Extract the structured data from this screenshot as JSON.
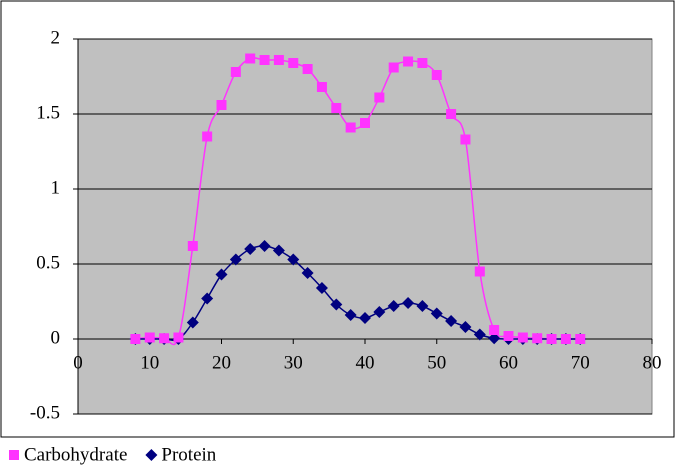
{
  "chart_data": {
    "type": "line",
    "x": [
      8,
      10,
      12,
      14,
      16,
      18,
      20,
      22,
      24,
      26,
      28,
      30,
      32,
      34,
      36,
      38,
      40,
      42,
      44,
      46,
      48,
      50,
      52,
      54,
      56,
      58,
      60,
      62,
      64,
      66,
      68,
      70
    ],
    "series": [
      {
        "name": "Carbohydrate",
        "color": "#ff33ff",
        "marker": "square",
        "values": [
          0,
          0.01,
          0.005,
          0.01,
          0.62,
          1.35,
          1.56,
          1.78,
          1.87,
          1.86,
          1.86,
          1.84,
          1.8,
          1.68,
          1.54,
          1.41,
          1.44,
          1.61,
          1.81,
          1.85,
          1.84,
          1.76,
          1.5,
          1.33,
          0.45,
          0.06,
          0.02,
          0.01,
          0.005,
          0,
          0,
          0
        ]
      },
      {
        "name": "Protein",
        "color": "#000080",
        "marker": "diamond",
        "values": [
          0,
          0,
          0,
          0,
          0.11,
          0.27,
          0.43,
          0.53,
          0.6,
          0.62,
          0.59,
          0.53,
          0.44,
          0.34,
          0.23,
          0.16,
          0.14,
          0.18,
          0.22,
          0.24,
          0.22,
          0.17,
          0.12,
          0.08,
          0.03,
          0.005,
          0,
          0,
          0,
          0,
          0,
          0
        ]
      }
    ],
    "xlim": [
      0,
      80
    ],
    "xticks": [
      0,
      10,
      20,
      30,
      40,
      50,
      60,
      70,
      80
    ],
    "ylim": [
      -0.5,
      2
    ],
    "yticks": [
      -0.5,
      0,
      0.5,
      1,
      1.5,
      2
    ],
    "grid": true,
    "legend": "bottom-left"
  }
}
